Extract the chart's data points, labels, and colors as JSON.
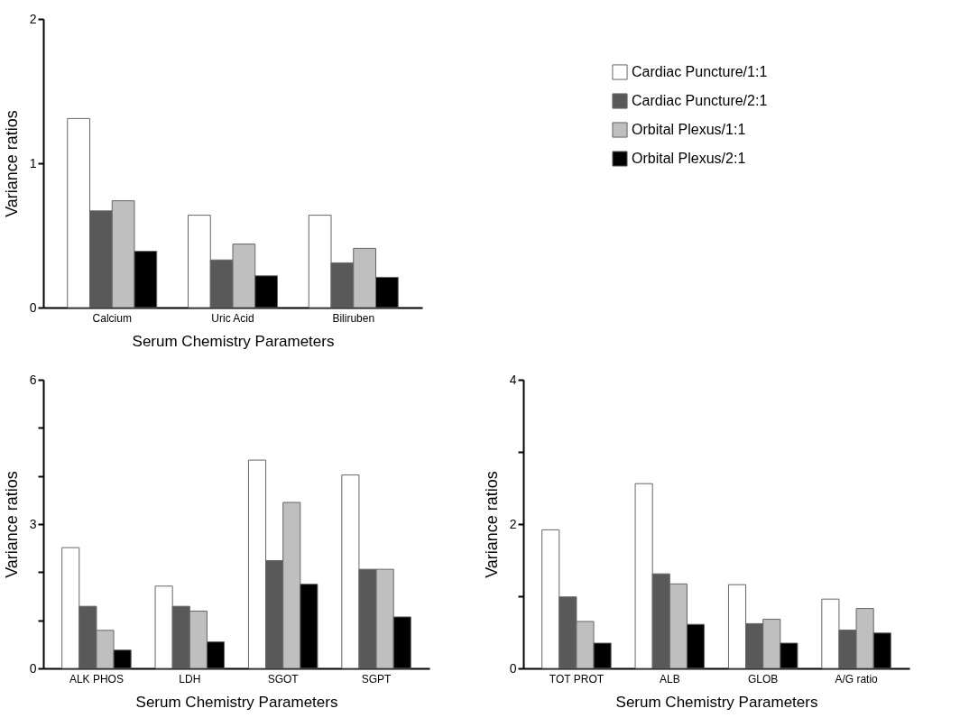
{
  "chart_data": [
    {
      "type": "bar",
      "xlabel": "Serum Chemistry Parameters",
      "ylabel": "Variance ratios",
      "categories": [
        "Calcium",
        "Uric Acid",
        "Biliruben"
      ],
      "ylim": [
        0,
        2
      ],
      "yticks": [
        0,
        1,
        2
      ],
      "legend": "right",
      "series": [
        {
          "name": "Cardiac Puncture/1:1",
          "color": "#ffffff",
          "values": [
            1.31,
            0.64,
            0.64
          ]
        },
        {
          "name": "Cardiac Puncture/2:1",
          "color": "#595959",
          "values": [
            0.67,
            0.33,
            0.31
          ]
        },
        {
          "name": "Orbital Plexus/1:1",
          "color": "#bfbfbf",
          "values": [
            0.74,
            0.44,
            0.41
          ]
        },
        {
          "name": "Orbital Plexus/2:1",
          "color": "#000000",
          "values": [
            0.39,
            0.22,
            0.21
          ]
        }
      ]
    },
    {
      "type": "bar",
      "xlabel": "Serum Chemistry Parameters",
      "ylabel": "Variance ratios",
      "categories": [
        "ALK PHOS",
        "LDH",
        "SGOT",
        "SGPT"
      ],
      "ylim": [
        0,
        6
      ],
      "yticks": [
        0,
        {
          "value": 1,
          "label": null
        },
        {
          "value": 2,
          "label": null
        },
        3,
        {
          "value": 4,
          "label": null
        },
        {
          "value": 5,
          "label": null
        },
        6
      ],
      "series": [
        {
          "color": "#ffffff",
          "values": [
            2.51,
            1.71,
            4.33,
            4.02
          ]
        },
        {
          "color": "#595959",
          "values": [
            1.29,
            1.29,
            2.24,
            2.06
          ]
        },
        {
          "color": "#bfbfbf",
          "values": [
            0.79,
            1.19,
            3.45,
            2.06
          ]
        },
        {
          "color": "#000000",
          "values": [
            0.38,
            0.55,
            1.75,
            1.07
          ]
        }
      ]
    },
    {
      "type": "bar",
      "xlabel": "Serum Chemistry Parameters",
      "ylabel": "Variance ratios",
      "categories": [
        "TOT PROT",
        "ALB",
        "GLOB",
        "A/G ratio"
      ],
      "ylim": [
        0,
        4
      ],
      "yticks": [
        0,
        {
          "value": 1,
          "label": null
        },
        2,
        {
          "value": 3,
          "label": null
        },
        4
      ],
      "series": [
        {
          "color": "#ffffff",
          "values": [
            1.92,
            2.56,
            1.16,
            0.96
          ]
        },
        {
          "color": "#595959",
          "values": [
            0.99,
            1.31,
            0.62,
            0.53
          ]
        },
        {
          "color": "#bfbfbf",
          "values": [
            0.65,
            1.17,
            0.68,
            0.83
          ]
        },
        {
          "color": "#000000",
          "values": [
            0.35,
            0.61,
            0.35,
            0.49
          ]
        }
      ]
    }
  ]
}
